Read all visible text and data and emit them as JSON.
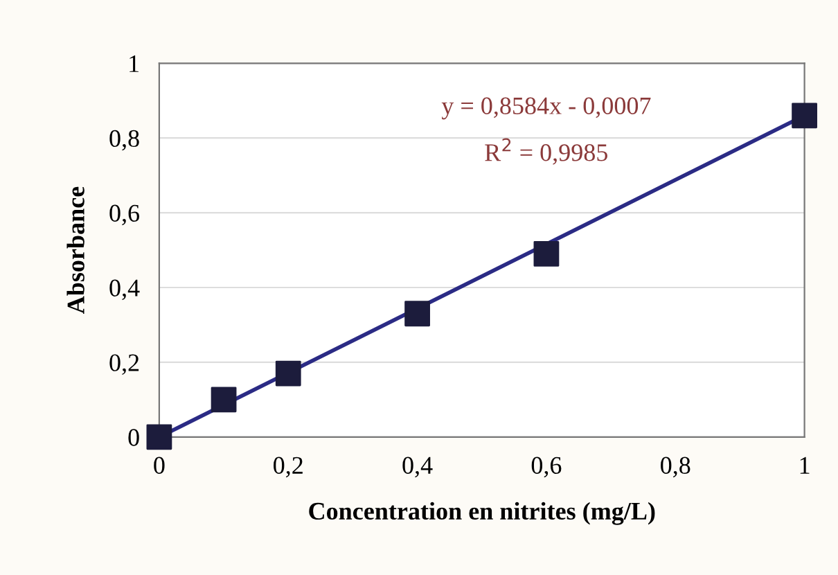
{
  "chart_data": {
    "type": "scatter",
    "xlabel": "Concentration en nitrites (mg/L)",
    "ylabel": "Absorbance",
    "series": [
      {
        "color": "#1c1c3c",
        "marker": "square",
        "x": [
          0,
          0.1,
          0.2,
          0.4,
          0.6,
          1
        ],
        "values": [
          0,
          0.1,
          0.17,
          0.33,
          0.49,
          0.86
        ]
      },
      {
        "type": "line",
        "color": "#2b2b85",
        "marker": "none",
        "line_style": "solid",
        "x": [
          0,
          1
        ],
        "values": [
          0,
          0.86
        ]
      }
    ],
    "annotations": [
      "y = 0,8584x - 0,0007",
      "R$^{2}$ = 0,9985"
    ],
    "xlim": [
      0,
      1
    ],
    "ylim": [
      0,
      1
    ],
    "xticks": [
      0,
      {
        "value": 0.2,
        "label": "0,2"
      },
      {
        "value": 0.4,
        "label": "0,4"
      },
      {
        "value": 0.6,
        "label": "0,6"
      },
      {
        "value": 0.8,
        "label": "0,8"
      },
      1
    ],
    "yticks": [
      0,
      {
        "value": 0.2,
        "label": "0,2"
      },
      {
        "value": 0.4,
        "label": "0,4"
      },
      {
        "value": 0.6,
        "label": "0,6"
      },
      {
        "value": 0.8,
        "label": "0,8"
      },
      1
    ],
    "grid": "y",
    "legend": false
  }
}
